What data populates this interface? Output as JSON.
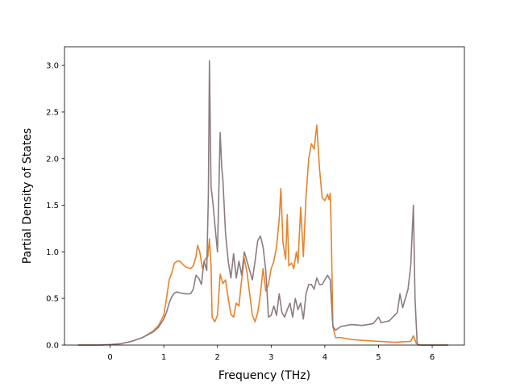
{
  "chart_data": {
    "type": "line",
    "title": "",
    "xlabel": "Frequency (THz)",
    "ylabel": "Partial Density of States",
    "xlim": [
      -0.85,
      6.6
    ],
    "ylim": [
      0.0,
      3.2
    ],
    "xticks": [
      0,
      1,
      2,
      3,
      4,
      5,
      6
    ],
    "yticks": [
      0.0,
      0.5,
      1.0,
      1.5,
      2.0,
      2.5,
      3.0
    ],
    "xtick_labels": [
      "0",
      "1",
      "2",
      "3",
      "4",
      "5",
      "6"
    ],
    "ytick_labels": [
      "0.0",
      "0.5",
      "1.0",
      "1.5",
      "2.0",
      "2.5",
      "3.0"
    ],
    "grid": false,
    "legend": "none",
    "series": [
      {
        "color": "#e8822a",
        "points": [
          [
            -0.6,
            0.0
          ],
          [
            -0.2,
            0.0
          ],
          [
            0.0,
            0.005
          ],
          [
            0.2,
            0.015
          ],
          [
            0.4,
            0.04
          ],
          [
            0.6,
            0.08
          ],
          [
            0.8,
            0.15
          ],
          [
            0.9,
            0.21
          ],
          [
            1.0,
            0.32
          ],
          [
            1.05,
            0.5
          ],
          [
            1.1,
            0.7
          ],
          [
            1.15,
            0.78
          ],
          [
            1.2,
            0.88
          ],
          [
            1.25,
            0.9
          ],
          [
            1.3,
            0.9
          ],
          [
            1.4,
            0.84
          ],
          [
            1.5,
            0.82
          ],
          [
            1.55,
            0.85
          ],
          [
            1.6,
            0.95
          ],
          [
            1.63,
            1.07
          ],
          [
            1.67,
            1.0
          ],
          [
            1.72,
            0.82
          ],
          [
            1.77,
            0.92
          ],
          [
            1.82,
            0.95
          ],
          [
            1.85,
            1.14
          ],
          [
            1.88,
            0.85
          ],
          [
            1.9,
            0.3
          ],
          [
            1.95,
            0.25
          ],
          [
            2.0,
            0.32
          ],
          [
            2.05,
            0.76
          ],
          [
            2.1,
            0.66
          ],
          [
            2.15,
            0.7
          ],
          [
            2.2,
            0.5
          ],
          [
            2.25,
            0.33
          ],
          [
            2.3,
            0.3
          ],
          [
            2.35,
            0.45
          ],
          [
            2.4,
            0.42
          ],
          [
            2.45,
            0.7
          ],
          [
            2.5,
            0.93
          ],
          [
            2.55,
            0.78
          ],
          [
            2.6,
            0.55
          ],
          [
            2.65,
            0.32
          ],
          [
            2.7,
            0.25
          ],
          [
            2.75,
            0.35
          ],
          [
            2.8,
            0.55
          ],
          [
            2.85,
            0.82
          ],
          [
            2.9,
            0.58
          ],
          [
            2.95,
            0.65
          ],
          [
            3.0,
            0.82
          ],
          [
            3.05,
            0.9
          ],
          [
            3.1,
            1.05
          ],
          [
            3.15,
            1.35
          ],
          [
            3.18,
            1.68
          ],
          [
            3.22,
            1.1
          ],
          [
            3.27,
            0.92
          ],
          [
            3.3,
            1.4
          ],
          [
            3.33,
            0.85
          ],
          [
            3.38,
            0.88
          ],
          [
            3.42,
            0.82
          ],
          [
            3.47,
            1.0
          ],
          [
            3.5,
            0.88
          ],
          [
            3.55,
            1.48
          ],
          [
            3.6,
            0.95
          ],
          [
            3.65,
            1.6
          ],
          [
            3.7,
            2.0
          ],
          [
            3.75,
            2.16
          ],
          [
            3.8,
            2.1
          ],
          [
            3.85,
            2.36
          ],
          [
            3.9,
            1.9
          ],
          [
            3.95,
            1.58
          ],
          [
            4.0,
            1.55
          ],
          [
            4.05,
            1.62
          ],
          [
            4.08,
            1.56
          ],
          [
            4.1,
            1.63
          ],
          [
            4.12,
            1.2
          ],
          [
            4.15,
            0.2
          ],
          [
            4.2,
            0.08
          ],
          [
            4.3,
            0.08
          ],
          [
            4.5,
            0.06
          ],
          [
            4.7,
            0.05
          ],
          [
            5.0,
            0.04
          ],
          [
            5.3,
            0.03
          ],
          [
            5.6,
            0.04
          ],
          [
            5.65,
            0.1
          ],
          [
            5.7,
            0.02
          ],
          [
            5.75,
            0.0
          ],
          [
            6.3,
            0.0
          ]
        ]
      },
      {
        "color": "#8c7b80",
        "points": [
          [
            -0.6,
            0.0
          ],
          [
            -0.2,
            0.0
          ],
          [
            0.0,
            0.005
          ],
          [
            0.2,
            0.015
          ],
          [
            0.4,
            0.04
          ],
          [
            0.6,
            0.08
          ],
          [
            0.8,
            0.14
          ],
          [
            0.9,
            0.19
          ],
          [
            1.0,
            0.28
          ],
          [
            1.05,
            0.35
          ],
          [
            1.1,
            0.45
          ],
          [
            1.15,
            0.52
          ],
          [
            1.2,
            0.56
          ],
          [
            1.25,
            0.57
          ],
          [
            1.3,
            0.56
          ],
          [
            1.4,
            0.55
          ],
          [
            1.5,
            0.55
          ],
          [
            1.55,
            0.6
          ],
          [
            1.6,
            0.75
          ],
          [
            1.65,
            0.72
          ],
          [
            1.7,
            0.65
          ],
          [
            1.75,
            0.9
          ],
          [
            1.8,
            0.8
          ],
          [
            1.83,
            1.6
          ],
          [
            1.85,
            3.05
          ],
          [
            1.88,
            1.7
          ],
          [
            1.92,
            1.5
          ],
          [
            1.95,
            1.3
          ],
          [
            2.0,
            1.0
          ],
          [
            2.05,
            2.28
          ],
          [
            2.08,
            1.9
          ],
          [
            2.1,
            1.78
          ],
          [
            2.15,
            1.2
          ],
          [
            2.2,
            0.9
          ],
          [
            2.25,
            0.72
          ],
          [
            2.3,
            0.98
          ],
          [
            2.35,
            0.72
          ],
          [
            2.4,
            0.9
          ],
          [
            2.45,
            0.75
          ],
          [
            2.5,
            1.0
          ],
          [
            2.55,
            0.9
          ],
          [
            2.6,
            0.8
          ],
          [
            2.65,
            0.7
          ],
          [
            2.7,
            0.9
          ],
          [
            2.75,
            1.12
          ],
          [
            2.8,
            1.17
          ],
          [
            2.85,
            1.05
          ],
          [
            2.9,
            0.8
          ],
          [
            2.95,
            0.3
          ],
          [
            3.0,
            0.32
          ],
          [
            3.05,
            0.42
          ],
          [
            3.1,
            0.32
          ],
          [
            3.15,
            0.55
          ],
          [
            3.2,
            0.35
          ],
          [
            3.25,
            0.3
          ],
          [
            3.3,
            0.38
          ],
          [
            3.35,
            0.45
          ],
          [
            3.4,
            0.3
          ],
          [
            3.45,
            0.5
          ],
          [
            3.5,
            0.38
          ],
          [
            3.55,
            0.45
          ],
          [
            3.6,
            0.28
          ],
          [
            3.65,
            0.55
          ],
          [
            3.7,
            0.65
          ],
          [
            3.75,
            0.65
          ],
          [
            3.8,
            0.6
          ],
          [
            3.85,
            0.72
          ],
          [
            3.9,
            0.65
          ],
          [
            3.95,
            0.65
          ],
          [
            4.0,
            0.7
          ],
          [
            4.05,
            0.75
          ],
          [
            4.1,
            0.7
          ],
          [
            4.15,
            0.2
          ],
          [
            4.2,
            0.16
          ],
          [
            4.3,
            0.2
          ],
          [
            4.5,
            0.22
          ],
          [
            4.7,
            0.21
          ],
          [
            4.9,
            0.23
          ],
          [
            5.0,
            0.3
          ],
          [
            5.05,
            0.24
          ],
          [
            5.2,
            0.26
          ],
          [
            5.35,
            0.35
          ],
          [
            5.4,
            0.55
          ],
          [
            5.45,
            0.4
          ],
          [
            5.55,
            0.6
          ],
          [
            5.6,
            0.85
          ],
          [
            5.65,
            1.5
          ],
          [
            5.68,
            0.5
          ],
          [
            5.72,
            0.02
          ],
          [
            5.75,
            0.0
          ],
          [
            6.3,
            0.0
          ]
        ]
      }
    ]
  }
}
